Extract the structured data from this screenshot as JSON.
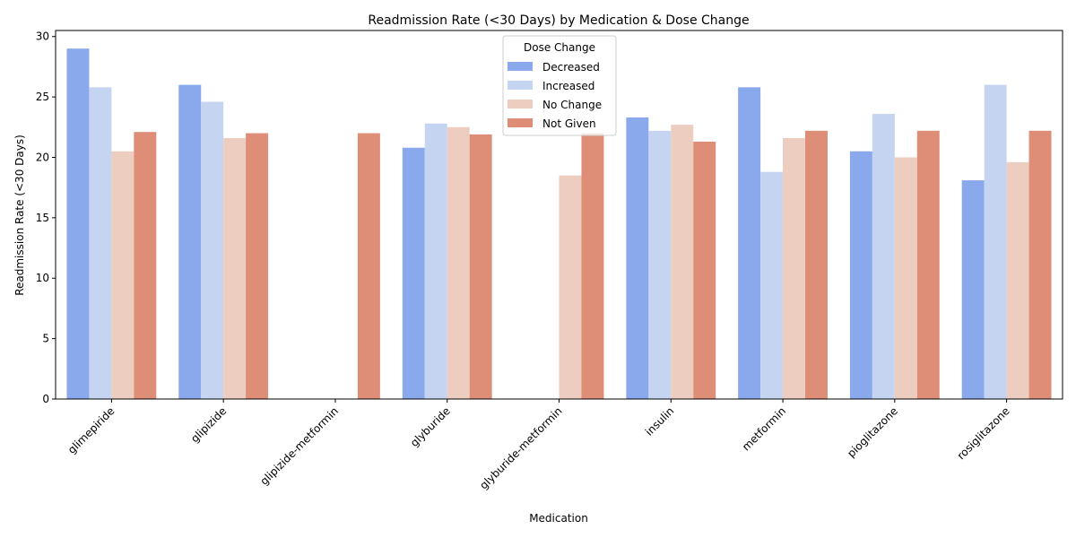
{
  "chart_data": {
    "type": "bar",
    "title": "Readmission Rate (<30 Days) by Medication & Dose Change",
    "xlabel": "Medication",
    "ylabel": "Readmission Rate (<30 Days)",
    "ylim": [
      0,
      30.5
    ],
    "yticks": [
      0,
      5,
      10,
      15,
      20,
      25,
      30
    ],
    "grid": false,
    "legend": {
      "title": "Dose Change",
      "placement": "top-center"
    },
    "categories": [
      "glimepiride",
      "glipizide",
      "glipizide-metformin",
      "glyburide",
      "glyburide-metformin",
      "insulin",
      "metformin",
      "pioglitazone",
      "rosiglitazone"
    ],
    "series": [
      {
        "name": "Decreased",
        "color": "#8aa8ec",
        "values": [
          29.0,
          26.0,
          null,
          20.8,
          null,
          23.3,
          25.8,
          20.5,
          18.1
        ]
      },
      {
        "name": "Increased",
        "color": "#c5d5f1",
        "values": [
          25.8,
          24.6,
          null,
          22.8,
          null,
          22.2,
          18.8,
          23.6,
          26.0
        ]
      },
      {
        "name": "No Change",
        "color": "#eccdc0",
        "values": [
          20.5,
          21.6,
          null,
          22.5,
          18.5,
          22.7,
          21.6,
          20.0,
          19.6
        ]
      },
      {
        "name": "Not Given",
        "color": "#de8d77",
        "values": [
          22.1,
          22.0,
          22.0,
          21.9,
          22.0,
          21.3,
          22.2,
          22.2,
          22.2
        ]
      }
    ]
  }
}
